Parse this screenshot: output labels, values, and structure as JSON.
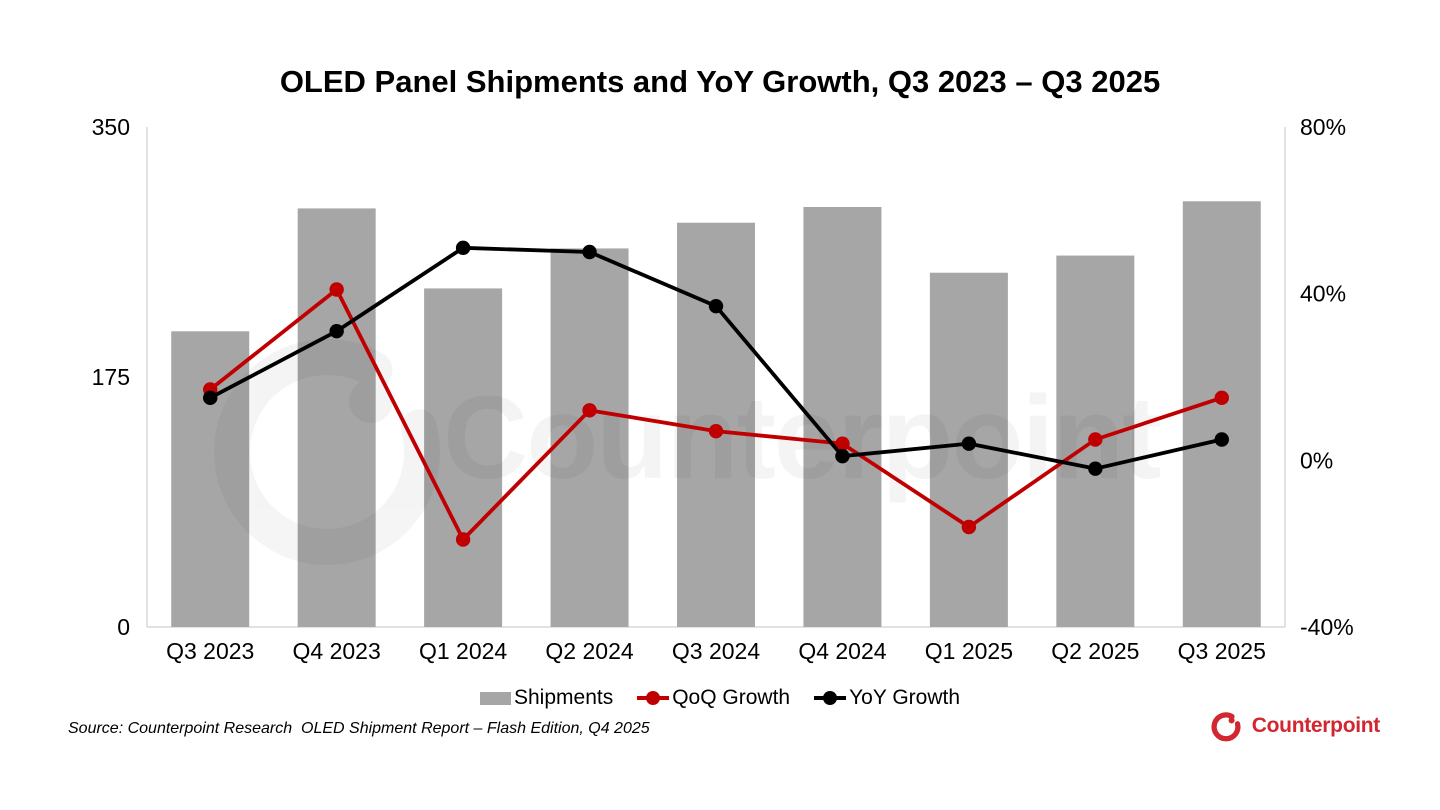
{
  "title": "OLED Panel Shipments and YoY Growth, Q3 2023 – Q3 2025",
  "source_note": "Source: Counterpoint Research  OLED Shipment Report – Flash Edition, Q4 2025",
  "watermark_text": "Counterpoint",
  "brand": {
    "name": "Counterpoint",
    "color": "#d22730"
  },
  "colors": {
    "bar": "#a6a6a6",
    "qoq_line": "#c00000",
    "yoy_line": "#000000",
    "axis_line": "#d9d9d9",
    "text": "#000000"
  },
  "legend": [
    {
      "label": "Shipments",
      "type": "bar",
      "color": "#a6a6a6"
    },
    {
      "label": "QoQ Growth",
      "type": "line",
      "color": "#c00000"
    },
    {
      "label": "YoY Growth",
      "type": "line",
      "color": "#000000"
    }
  ],
  "chart_data": {
    "type": "combo",
    "title": "OLED Panel Shipments and YoY Growth, Q3 2023 – Q3 2025",
    "categories": [
      "Q3 2023",
      "Q4 2023",
      "Q1 2024",
      "Q2 2024",
      "Q3 2024",
      "Q4 2024",
      "Q1 2025",
      "Q2 2025",
      "Q3 2025"
    ],
    "series": [
      {
        "name": "Shipments",
        "type": "bar",
        "axis": "left",
        "color": "#a6a6a6",
        "values": [
          207,
          293,
          237,
          265,
          283,
          294,
          248,
          260,
          298
        ]
      },
      {
        "name": "QoQ Growth",
        "type": "line",
        "axis": "right",
        "color": "#c00000",
        "unit": "%",
        "values": [
          17,
          41,
          -19,
          12,
          7,
          4,
          -16,
          5,
          15
        ]
      },
      {
        "name": "YoY Growth",
        "type": "line",
        "axis": "right",
        "color": "#000000",
        "unit": "%",
        "values": [
          15,
          31,
          51,
          50,
          37,
          1,
          4,
          -2,
          5
        ]
      }
    ],
    "left_axis": {
      "range": [
        0,
        350
      ],
      "ticks": [
        0,
        175,
        350
      ],
      "tick_labels": [
        "0",
        "175",
        "350"
      ]
    },
    "right_axis": {
      "range": [
        -40,
        80
      ],
      "ticks": [
        -40,
        0,
        40,
        80
      ],
      "tick_labels": [
        "-40%",
        "0%",
        "40%",
        "80%"
      ]
    },
    "grid": false,
    "legend_position": "bottom"
  }
}
